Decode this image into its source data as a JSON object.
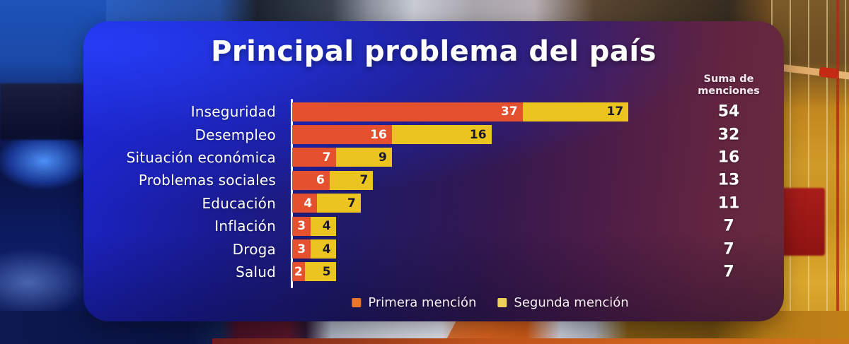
{
  "title": "Principal problema del país",
  "sum_header": {
    "line1": "Suma de",
    "line2": "menciones"
  },
  "colors": {
    "primera_bar": "#E5512E",
    "segunda_bar": "#ECC41F",
    "legend_primera_swatch": "#E8772B",
    "legend_segunda_swatch": "#EDD05C",
    "axis": "#FFFFFF",
    "panel_blue": "#1B24C9",
    "panel_maroon": "#682B3C"
  },
  "chart_data": {
    "type": "bar",
    "orientation": "horizontal",
    "stacked": true,
    "title": "Principal problema del país",
    "categories": [
      "Inseguridad",
      "Desempleo",
      "Situación económica",
      "Problemas sociales",
      "Educación",
      "Inflación",
      "Droga",
      "Salud"
    ],
    "series": [
      {
        "name": "Primera mención",
        "color": "#E5512E",
        "values": [
          37,
          16,
          7,
          6,
          4,
          3,
          3,
          2
        ]
      },
      {
        "name": "Segunda mención",
        "color": "#ECC41F",
        "values": [
          17,
          16,
          9,
          7,
          7,
          4,
          4,
          5
        ]
      }
    ],
    "totals": [
      54,
      32,
      16,
      13,
      11,
      7,
      7,
      7
    ],
    "totals_label": "Suma de menciones",
    "xlim": [
      0,
      54
    ],
    "grid": false,
    "legend_position": "bottom",
    "value_labels": "inside-right"
  }
}
